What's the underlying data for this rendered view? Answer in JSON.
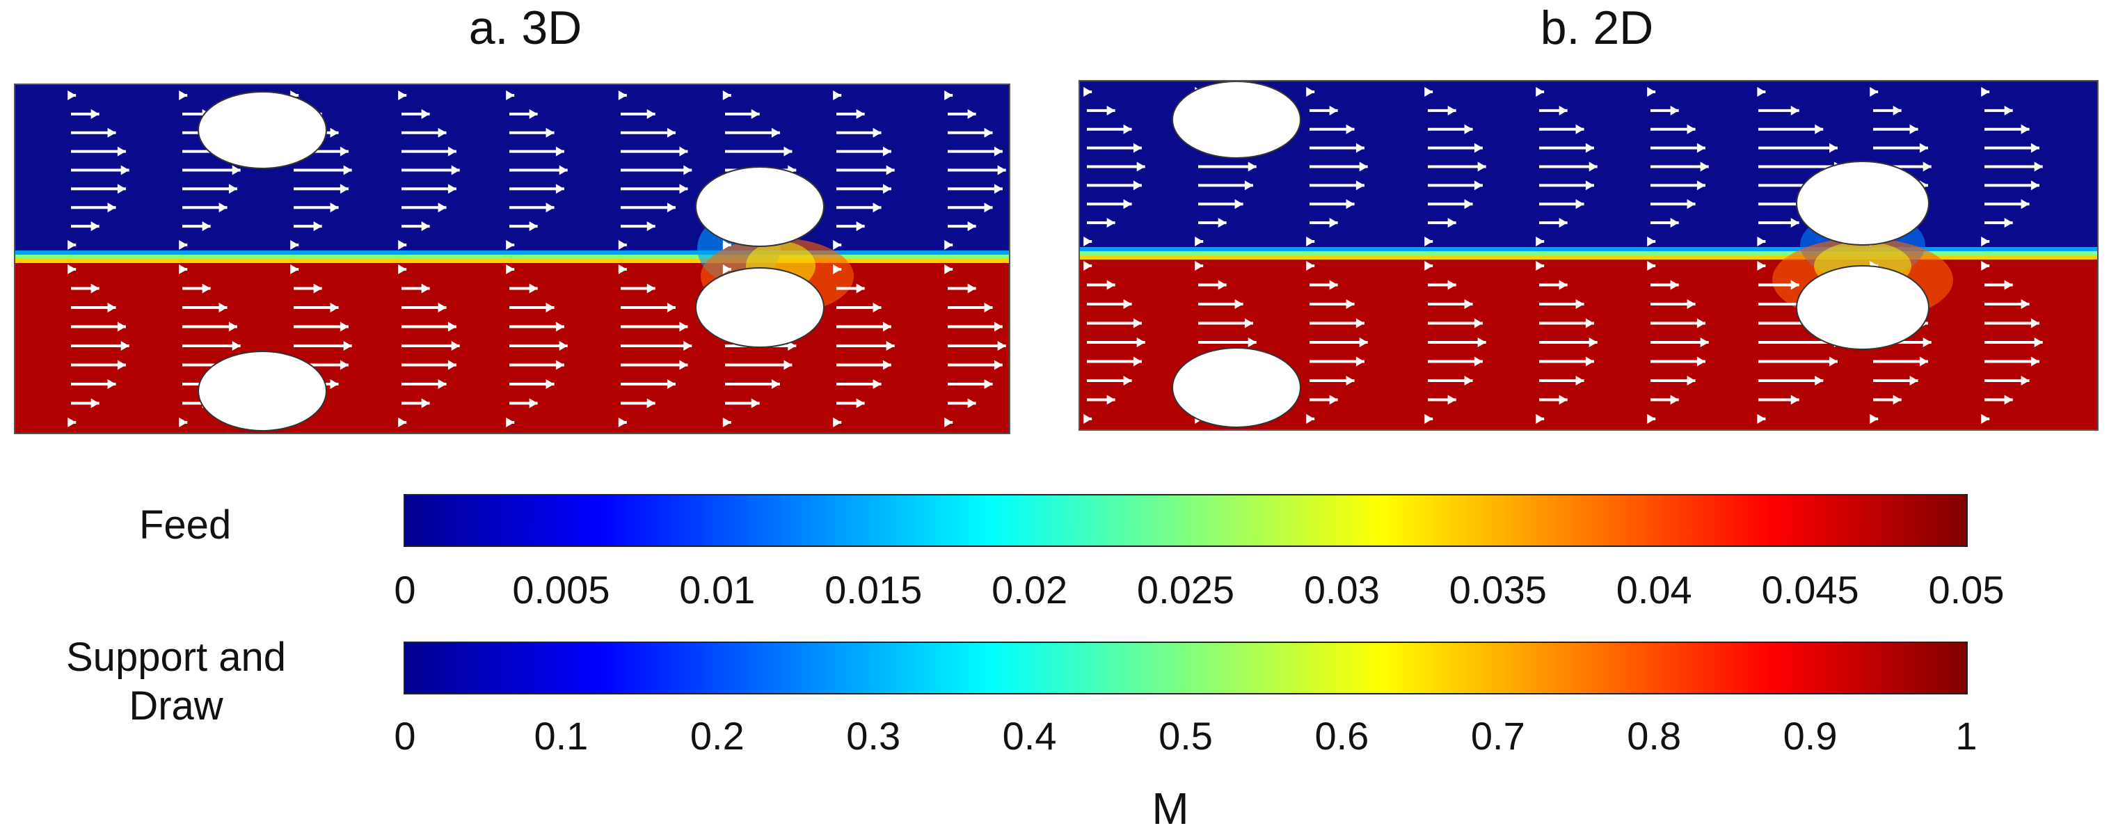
{
  "panels": [
    {
      "title": "a. 3D"
    },
    {
      "title": "b. 2D"
    }
  ],
  "colorbars": [
    {
      "label": "Feed",
      "ticks": [
        "0",
        "0.005",
        "0.01",
        "0.015",
        "0.02",
        "0.025",
        "0.03",
        "0.035",
        "0.04",
        "0.045",
        "0.05"
      ]
    },
    {
      "label": "Support and\nDraw",
      "ticks": [
        "0",
        "0.1",
        "0.2",
        "0.3",
        "0.4",
        "0.5",
        "0.6",
        "0.7",
        "0.8",
        "0.9",
        "1"
      ]
    }
  ],
  "unit_label": "M",
  "colors": {
    "feed_side": "#0a0a8c",
    "draw_side": "#b00000",
    "membrane_gradient": [
      "#0000ff",
      "#00ffff",
      "#ffff00",
      "#ff0000"
    ],
    "arrows": "#ffffff"
  }
}
